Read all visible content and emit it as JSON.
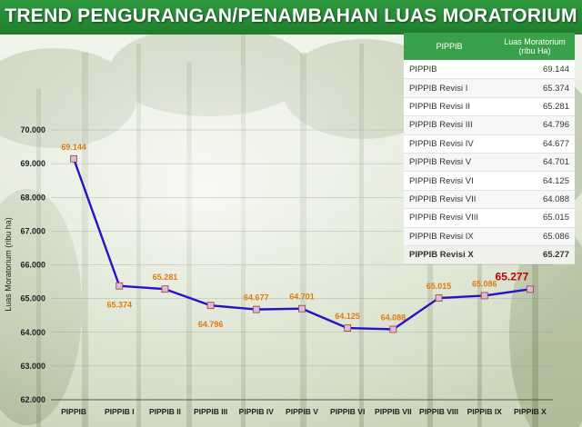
{
  "title": "TREND PENGURANGAN/PENAMBAHAN LUAS MORATORIUM",
  "colors": {
    "line": "#2a10c8",
    "label": "#e07a10",
    "highlight": "#c00000",
    "header": "#3aa14b"
  },
  "table": {
    "col1": "PIPPIB",
    "col2": "Luas Moratorium (ribu Ha)",
    "rows": [
      {
        "name": "PIPPIB",
        "value": "69.144"
      },
      {
        "name": "PIPPIB Revisi I",
        "value": "65.374"
      },
      {
        "name": "PIPPIB Revisi II",
        "value": "65.281"
      },
      {
        "name": "PIPPIB Revisi III",
        "value": "64.796"
      },
      {
        "name": "PIPPIB Revisi IV",
        "value": "64.677"
      },
      {
        "name": "PIPPIB Revisi V",
        "value": "64.701"
      },
      {
        "name": "PIPPIB Revisi VI",
        "value": "64.125"
      },
      {
        "name": "PIPPIB Revisi VII",
        "value": "64.088"
      },
      {
        "name": "PIPPIB Revisi VIII",
        "value": "65.015"
      },
      {
        "name": "PIPPIB Revisi IX",
        "value": "65.086"
      },
      {
        "name": "PIPPIB Revisi X",
        "value": "65.277"
      }
    ]
  },
  "chart_data": {
    "type": "line",
    "title": "TREND PENGURANGAN/PENAMBAHAN LUAS MORATORIUM",
    "xlabel": "",
    "ylabel": "Luas Moratorium (ribu ha)",
    "ylim": [
      62000,
      70000
    ],
    "yticks": [
      62000,
      63000,
      64000,
      65000,
      66000,
      67000,
      68000,
      69000,
      70000
    ],
    "ytick_labels": [
      "62.000",
      "63.000",
      "64.000",
      "65.000",
      "66.000",
      "67.000",
      "68.000",
      "69.000",
      "70.000"
    ],
    "grid": true,
    "categories": [
      "PIPPIB",
      "PIPPIB I",
      "PIPPIB II",
      "PIPPIB III",
      "PIPPIB IV",
      "PIPPIB V",
      "PIPPIB VI",
      "PIPPIB VII",
      "PIPPIB VIII",
      "PIPPIB IX",
      "PIPPIB X"
    ],
    "series": [
      {
        "name": "Luas Moratorium",
        "values": [
          69144,
          65374,
          65281,
          64796,
          64677,
          64701,
          64125,
          64088,
          65015,
          65086,
          65277
        ],
        "labels": [
          "69.144",
          "65.374",
          "65.281",
          "64.796",
          "64.677",
          "64.701",
          "64.125",
          "64.088",
          "65.015",
          "65.086",
          "65.277"
        ]
      }
    ]
  }
}
